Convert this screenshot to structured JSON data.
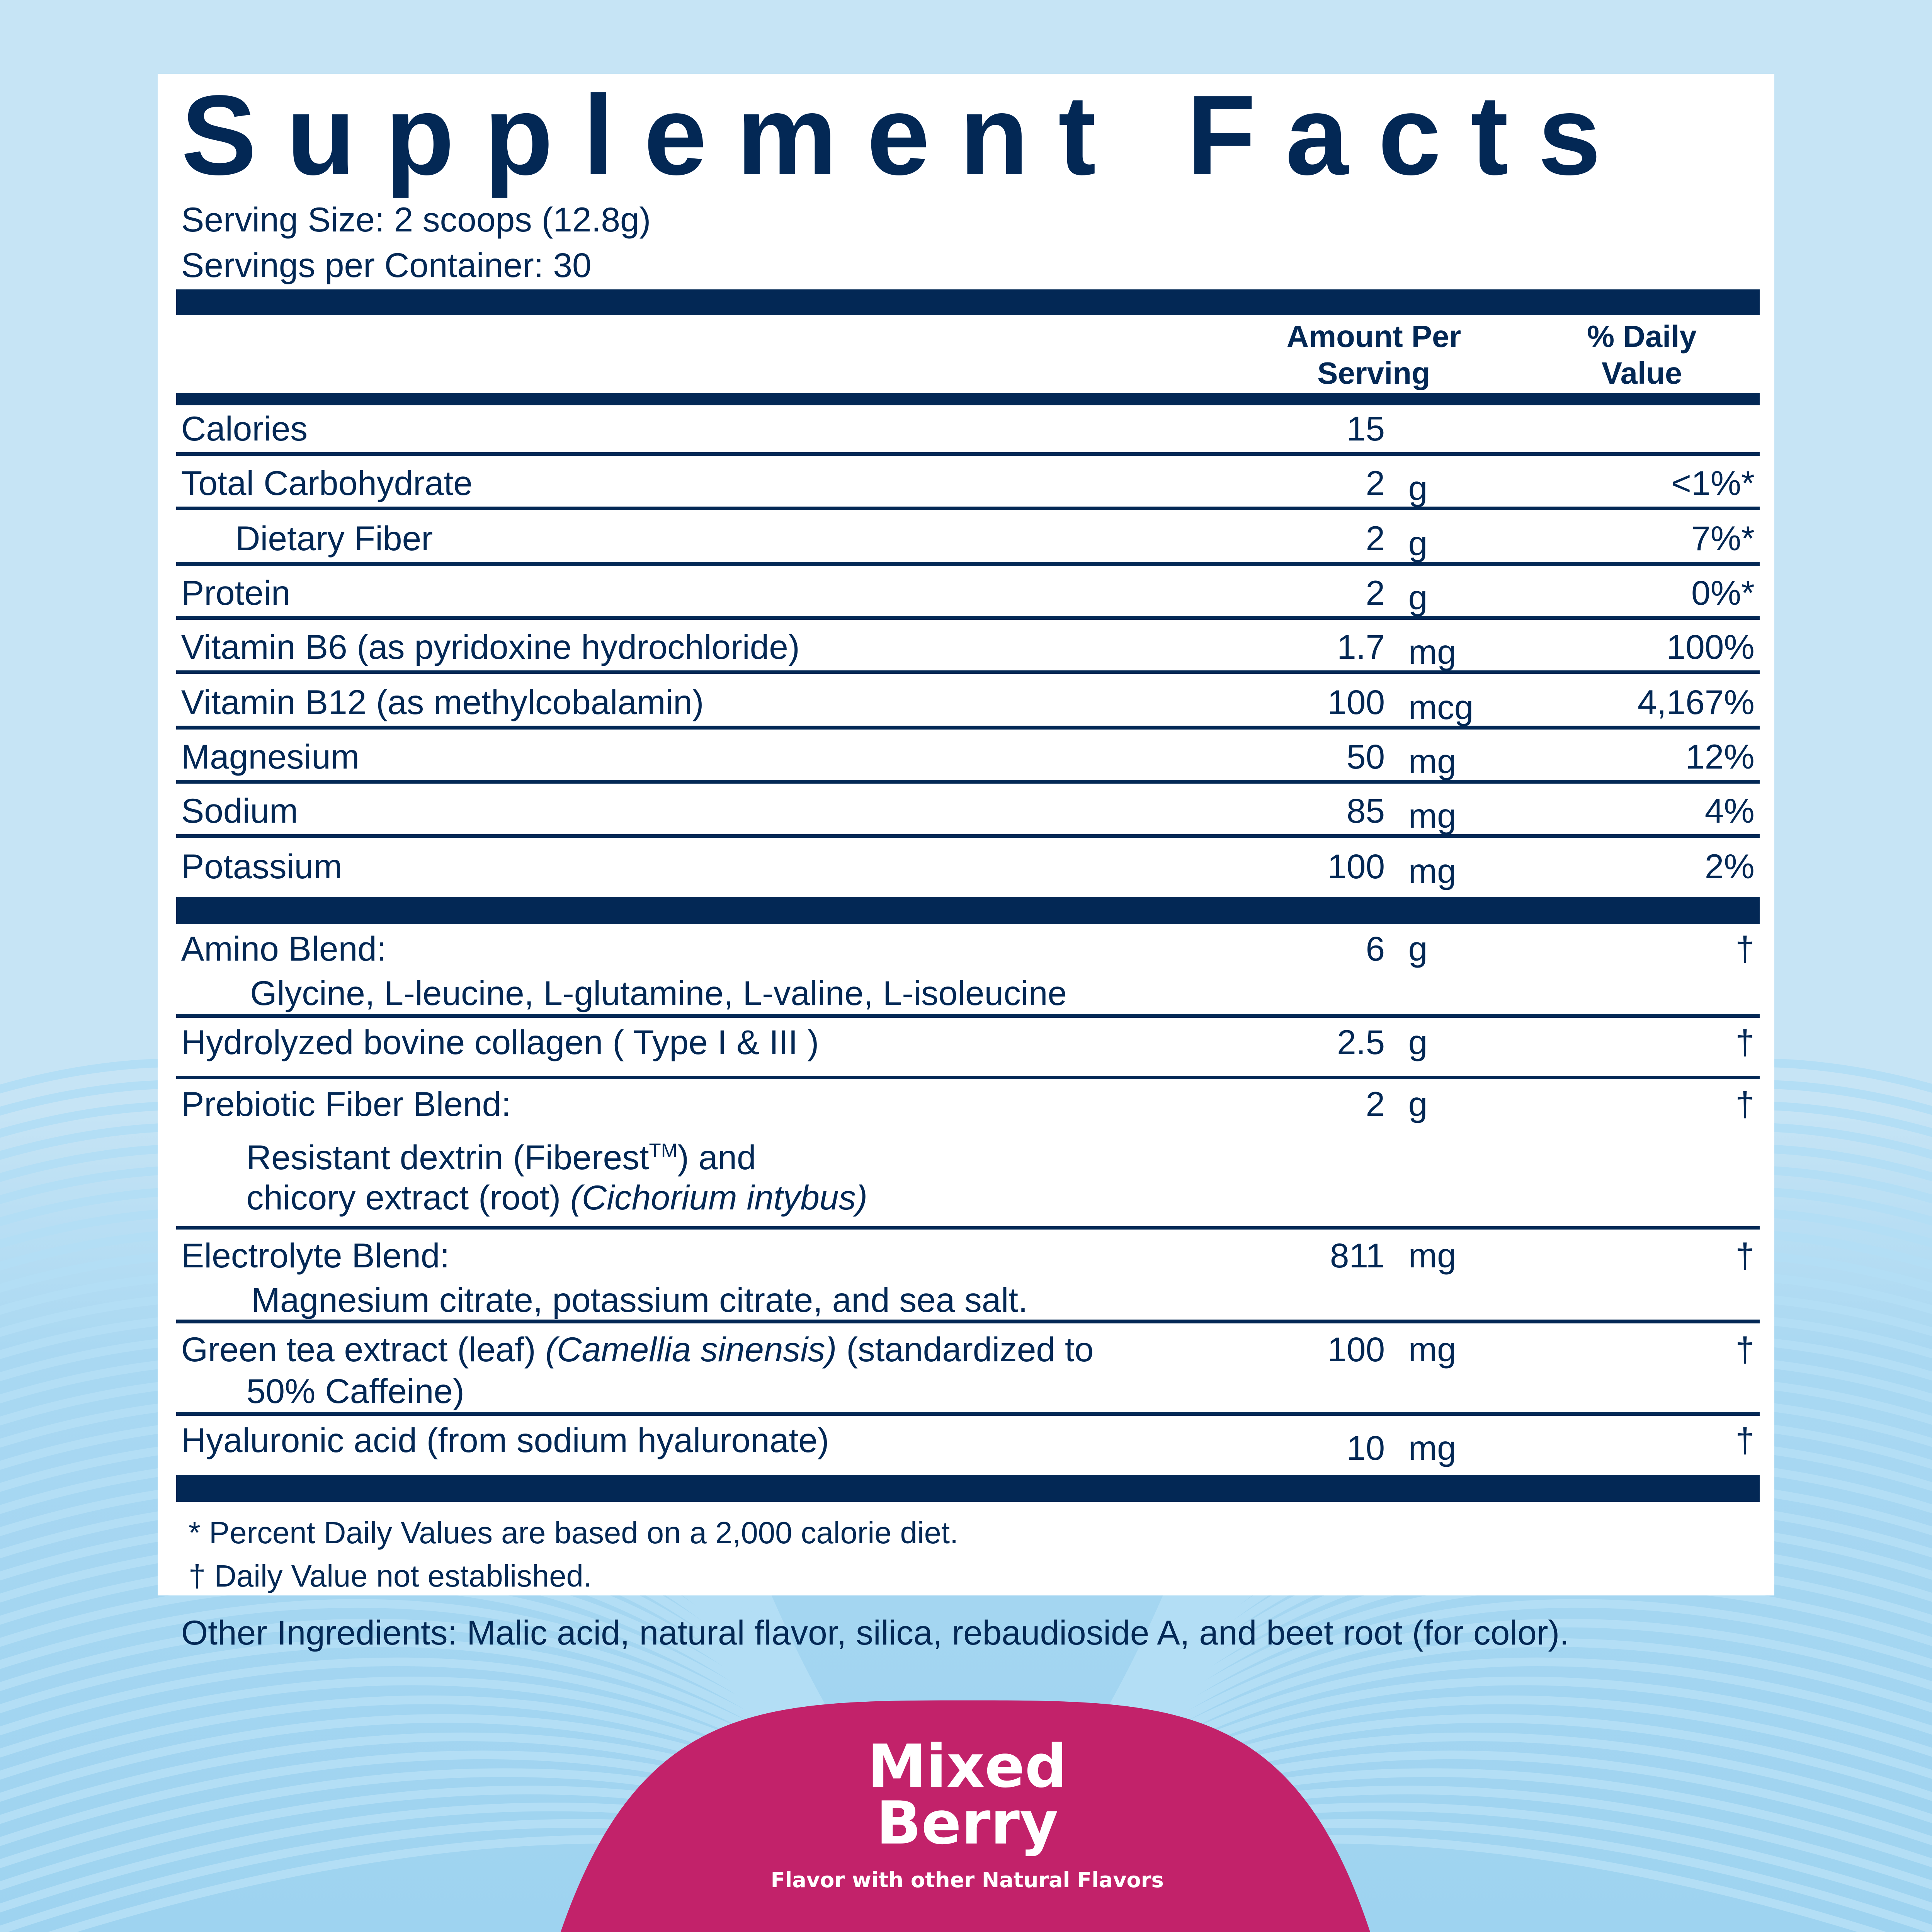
{
  "colors": {
    "navy": "#032855",
    "background": "#c6e4f5",
    "flavor_badge": "#c2226a"
  },
  "title": "Supplement Facts",
  "serving_size": "Serving Size: 2 scoops (12.8g)",
  "servings_per_container": "Servings per Container: 30",
  "headers": {
    "amount": "Amount Per\nServing",
    "daily_value": "% Daily\nValue"
  },
  "nutrients": [
    {
      "name": "Calories",
      "amount": "15",
      "unit": "",
      "dv": ""
    },
    {
      "name": "Total Carbohydrate",
      "amount": "2",
      "unit": "g",
      "dv": "<1%*"
    },
    {
      "name": "Dietary Fiber",
      "amount": "2",
      "unit": "g",
      "dv": "7%*"
    },
    {
      "name": "Protein",
      "amount": "2",
      "unit": "g",
      "dv": "0%*"
    },
    {
      "name": "Vitamin B6 (as pyridoxine hydrochloride)",
      "amount": "1.7",
      "unit": "mg",
      "dv": "100%"
    },
    {
      "name": "Vitamin B12 (as methylcobalamin)",
      "amount": "100",
      "unit": "mcg",
      "dv": "4,167%"
    },
    {
      "name": "Magnesium",
      "amount": "50",
      "unit": "mg",
      "dv": "12%"
    },
    {
      "name": "Sodium",
      "amount": "85",
      "unit": "mg",
      "dv": "4%"
    },
    {
      "name": "Potassium",
      "amount": "100",
      "unit": "mg",
      "dv": "2%"
    }
  ],
  "blends": [
    {
      "name": "Amino Blend:",
      "sub": "Glycine, L-leucine, L-glutamine, L-valine, L-isoleucine",
      "amount": "6",
      "unit": "g",
      "dv": "†"
    },
    {
      "name": "Hydrolyzed bovine collagen ( Type I & III )",
      "amount": "2.5",
      "unit": "g",
      "dv": "†"
    },
    {
      "name": "Prebiotic Fiber Blend:",
      "sub1a": "Resistant dextrin (Fiberest",
      "sub1tm": "TM",
      "sub1b": ") and",
      "sub2a": "chicory extract (root) ",
      "sub2i": "(Cichorium intybus)",
      "amount": "2",
      "unit": "g",
      "dv": "†"
    },
    {
      "name": "Electrolyte Blend:",
      "sub": "Magnesium citrate, potassium citrate, and sea salt.",
      "amount": "811",
      "unit": "mg",
      "dv": "†"
    },
    {
      "name_a": "Green tea extract (leaf) ",
      "name_i": "(Camellia sinensis)",
      "name_b": " (standardized to",
      "sub": "50% Caffeine)",
      "amount": "100",
      "unit": "mg",
      "dv": "†"
    },
    {
      "name": "Hyaluronic acid (from sodium hyaluronate)",
      "amount": "10",
      "unit": "mg",
      "dv": "†"
    }
  ],
  "footnotes": [
    "* Percent Daily Values are based on a 2,000 calorie diet.",
    "† Daily Value not established."
  ],
  "other_ingredients": "Other Ingredients: Malic acid, natural flavor, silica, rebaudioside A, and beet root (for color).",
  "flavor": {
    "line1": "Mixed",
    "line2": "Berry",
    "tagline": "Flavor with other Natural Flavors"
  }
}
